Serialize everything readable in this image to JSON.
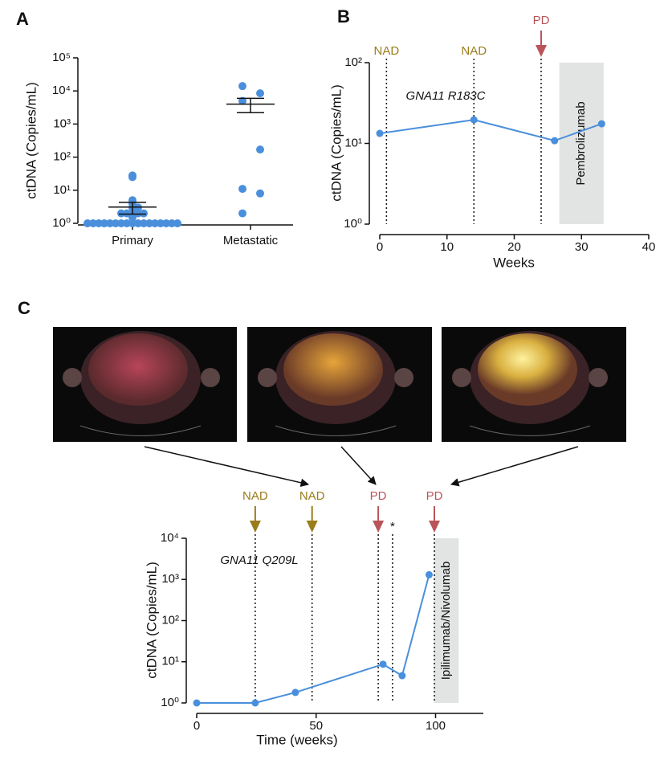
{
  "chart_data": [
    {
      "type": "scatter",
      "title": "A",
      "ylabel": "ctDNA (Copies/mL)",
      "categories": [
        "Primary",
        "Metastatic"
      ],
      "values": [
        [
          28,
          25,
          5,
          4,
          3,
          3,
          2,
          2,
          2,
          2,
          2,
          1.7,
          1.5,
          1,
          1,
          1,
          1,
          1,
          1,
          1,
          1,
          1,
          1,
          1,
          1,
          1,
          1,
          1,
          1,
          1
        ],
        [
          14000,
          8500,
          5000,
          170,
          11,
          8,
          2
        ]
      ],
      "mean": [
        3.1,
        4000
      ],
      "sem_low": [
        1.9,
        2200
      ],
      "sem_high": [
        4.3,
        6000
      ],
      "color": "#4a8fdc",
      "yscale": "log",
      "ylim": [
        1,
        100000
      ],
      "yticks": [
        {
          "value": 1,
          "label": "10⁰"
        },
        {
          "value": 10,
          "label": "10¹"
        },
        {
          "value": 100,
          "label": "10²"
        },
        {
          "value": 1000,
          "label": "10³"
        },
        {
          "value": 10000,
          "label": "10⁴"
        },
        {
          "value": 100000,
          "label": "10⁵"
        }
      ]
    },
    {
      "type": "line",
      "title": "B",
      "ylabel": "ctDNA (Copies/mL)",
      "xlabel": "Weeks",
      "annotation": "GNA11 R183C",
      "x": [
        0,
        14,
        26,
        33
      ],
      "values": [
        13.3,
        19.6,
        10.8,
        17.5
      ],
      "color": "#4a8fdc",
      "xlim": [
        0,
        40
      ],
      "xticks": [
        0,
        10,
        20,
        30,
        40
      ],
      "yscale": "log",
      "ylim": [
        1,
        100
      ],
      "yticks": [
        {
          "value": 1,
          "label": "10⁰"
        },
        {
          "value": 10,
          "label": "10¹"
        },
        {
          "value": 100,
          "label": "10²"
        }
      ],
      "events": [
        {
          "x": 1,
          "label": "NAD",
          "color": "#9a7d1a",
          "arrow": false
        },
        {
          "x": 14,
          "label": "NAD",
          "color": "#9a7d1a",
          "arrow": false
        },
        {
          "x": 24,
          "label": "PD",
          "color": "#b9555a",
          "arrow": true
        }
      ],
      "shade": {
        "xlim": [
          26.7,
          33.3
        ],
        "label": "Pembrolizumab"
      }
    },
    {
      "type": "line",
      "title": "C",
      "ylabel": "ctDNA (Copies/mL)",
      "xlabel": "Time (weeks)",
      "annotation": "GNA11 Q209L",
      "x": [
        0,
        24.5,
        41.3,
        78,
        86,
        97.3
      ],
      "values": [
        1,
        1,
        1.8,
        8.7,
        4.6,
        1300
      ],
      "color": "#4a8fdc",
      "xlim": [
        0,
        120
      ],
      "xticks": [
        0,
        50,
        100
      ],
      "yscale": "log",
      "ylim": [
        1,
        10000
      ],
      "yticks": [
        {
          "value": 1,
          "label": "10⁰"
        },
        {
          "value": 10,
          "label": "10¹"
        },
        {
          "value": 100,
          "label": "10²"
        },
        {
          "value": 1000,
          "label": "10³"
        },
        {
          "value": 10000,
          "label": "10⁴"
        }
      ],
      "events": [
        {
          "x": 24.5,
          "label": "NAD",
          "color": "#9a7d1a",
          "arrow": true
        },
        {
          "x": 48.3,
          "label": "NAD",
          "color": "#9a7d1a",
          "arrow": true
        },
        {
          "x": 76,
          "label": "PD",
          "color": "#b9555a",
          "arrow": true
        },
        {
          "x": 82,
          "label": "*",
          "color": "#111111",
          "arrow": false
        },
        {
          "x": 99.5,
          "label": "PD",
          "color": "#b9555a",
          "arrow": true
        }
      ],
      "shade": {
        "xlim": [
          99.3,
          109.7
        ],
        "label": "Ipilimumab/Nivolumab"
      }
    }
  ]
}
